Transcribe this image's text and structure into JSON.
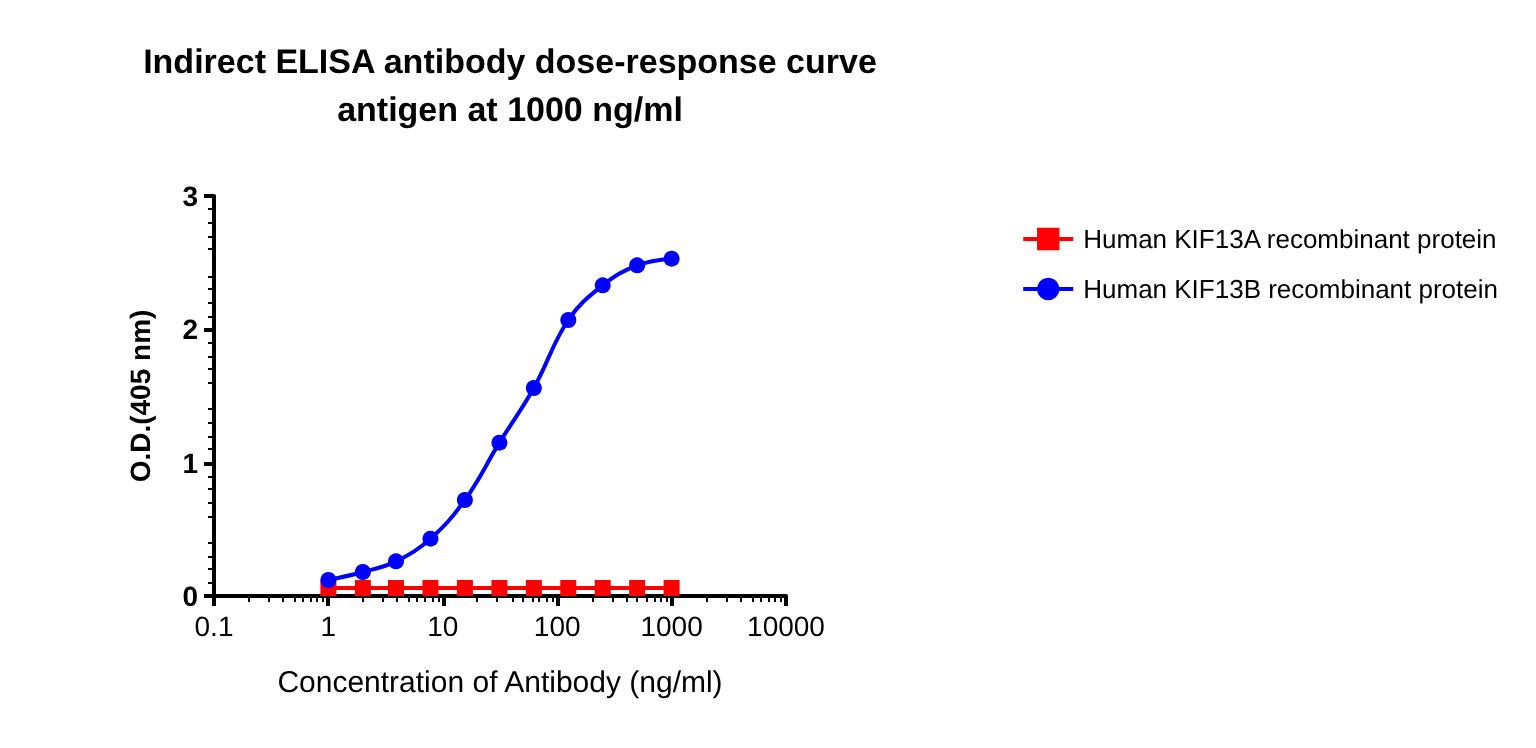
{
  "chart_data": {
    "type": "line",
    "title": "Indirect ELISA antibody dose-response curve\nantigen at 1000 ng/ml",
    "xlabel": "Concentration of Antibody (ng/ml)",
    "ylabel": "O.D.(405 nm)",
    "x": [
      1,
      2,
      3.9,
      7.8,
      15.6,
      31.25,
      62.5,
      125,
      250,
      500,
      1000
    ],
    "series": [
      {
        "name": "Human KIF13A recombinant protein",
        "color": "#ff0000",
        "marker": "square",
        "values": [
          0.06,
          0.06,
          0.06,
          0.06,
          0.06,
          0.06,
          0.06,
          0.06,
          0.06,
          0.06,
          0.06
        ]
      },
      {
        "name": "Human KIF13B recombinant protein",
        "color": "#0000ff",
        "marker": "circle",
        "values": [
          0.12,
          0.18,
          0.26,
          0.43,
          0.72,
          1.15,
          1.56,
          2.07,
          2.33,
          2.48,
          2.53
        ]
      }
    ],
    "log": "x",
    "xlim": [
      0.1,
      10000
    ],
    "xticks": [
      0.1,
      1,
      10,
      100,
      1000,
      10000
    ],
    "ylim": [
      0,
      3
    ],
    "yticks": [
      0,
      1,
      2,
      3
    ],
    "grid": false,
    "legend": "right",
    "line_style": "solid"
  }
}
